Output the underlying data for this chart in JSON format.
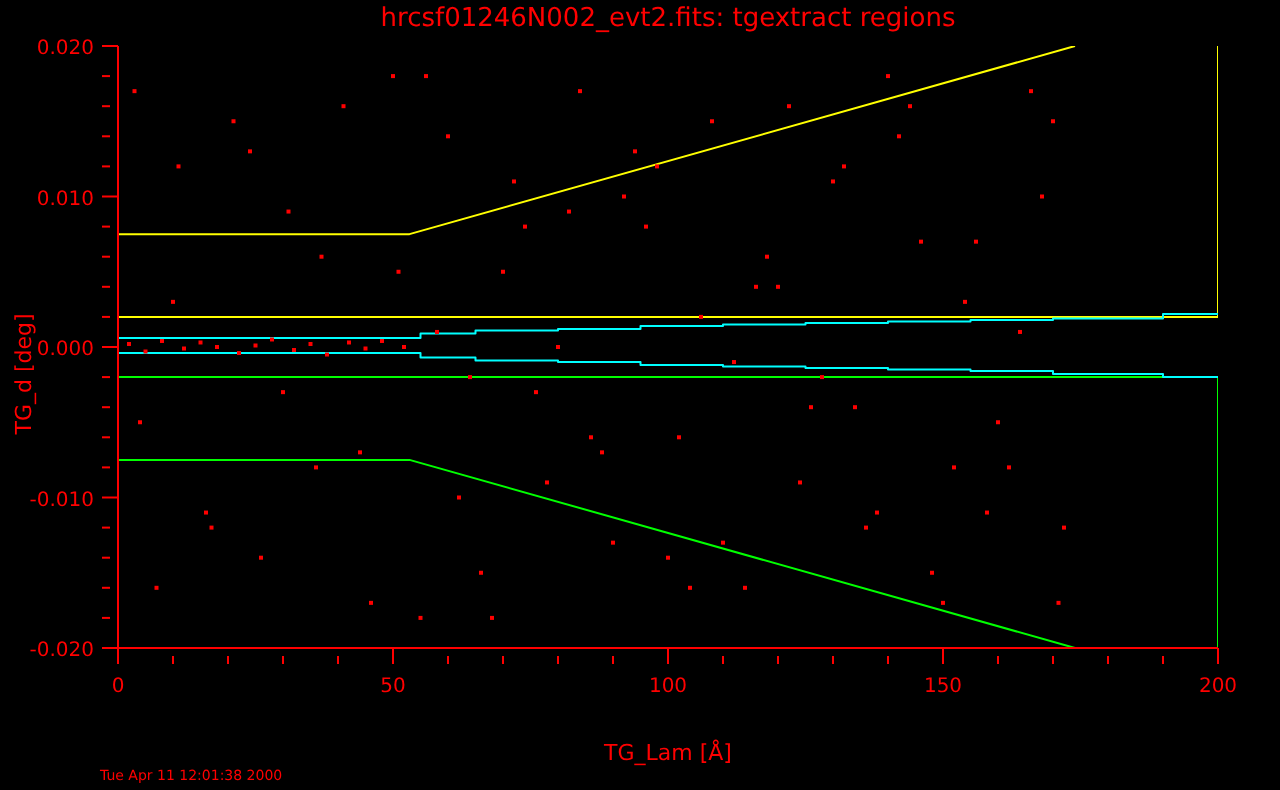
{
  "chart_data": {
    "type": "scatter",
    "title": "hrcsf01246N002_evt2.fits:  tgextract regions",
    "xlabel": "TG_Lam [Å]",
    "ylabel": "TG_d [deg]",
    "annotations": [
      "Tue Apr 11 12:01:38 2000"
    ],
    "xlim": [
      0,
      200
    ],
    "ylim": [
      -0.02,
      0.02
    ],
    "xticks": [
      0,
      {
        "value": 10,
        "label": null
      },
      {
        "value": 20,
        "label": null
      },
      {
        "value": 30,
        "label": null
      },
      {
        "value": 40,
        "label": null
      },
      50,
      {
        "value": 60,
        "label": null
      },
      {
        "value": 70,
        "label": null
      },
      {
        "value": 80,
        "label": null
      },
      {
        "value": 90,
        "label": null
      },
      100,
      {
        "value": 110,
        "label": null
      },
      {
        "value": 120,
        "label": null
      },
      {
        "value": 130,
        "label": null
      },
      {
        "value": 140,
        "label": null
      },
      150,
      {
        "value": 160,
        "label": null
      },
      {
        "value": 170,
        "label": null
      },
      {
        "value": 180,
        "label": null
      },
      {
        "value": 190,
        "label": null
      },
      200
    ],
    "yticks": [
      {
        "value": -0.02,
        "label": "-0.020"
      },
      {
        "value": -0.018,
        "label": null
      },
      {
        "value": -0.016,
        "label": null
      },
      {
        "value": -0.014,
        "label": null
      },
      {
        "value": -0.012,
        "label": null
      },
      {
        "value": -0.01,
        "label": "-0.010"
      },
      {
        "value": -0.008,
        "label": null
      },
      {
        "value": -0.006,
        "label": null
      },
      {
        "value": -0.004,
        "label": null
      },
      {
        "value": -0.002,
        "label": null
      },
      {
        "value": 0,
        "label": "0.000"
      },
      {
        "value": 0.002,
        "label": null
      },
      {
        "value": 0.004,
        "label": null
      },
      {
        "value": 0.006,
        "label": null
      },
      {
        "value": 0.008,
        "label": null
      },
      {
        "value": 0.01,
        "label": "0.010"
      },
      {
        "value": 0.012,
        "label": null
      },
      {
        "value": 0.014,
        "label": null
      },
      {
        "value": 0.016,
        "label": null
      },
      {
        "value": 0.018,
        "label": null
      },
      {
        "value": 0.02,
        "label": "0.020"
      }
    ],
    "series": [
      {
        "marker": "square",
        "color": "#ff0000",
        "x": [
          2,
          5,
          8,
          12,
          15,
          18,
          22,
          25,
          28,
          32,
          35,
          38,
          42,
          45,
          48,
          52,
          3,
          7,
          11,
          16,
          21,
          26,
          31,
          36,
          41,
          46,
          51,
          4,
          10,
          17,
          24,
          30,
          37,
          44,
          50,
          55,
          60,
          66,
          72,
          78,
          84,
          90,
          96,
          102,
          108,
          114,
          120,
          126,
          132,
          138,
          144,
          150,
          156,
          162,
          168,
          172,
          58,
          64,
          70,
          76,
          82,
          88,
          94,
          100,
          106,
          112,
          118,
          124,
          130,
          136,
          142,
          148,
          154,
          160,
          166,
          171,
          62,
          74,
          86,
          98,
          110,
          122,
          134,
          146,
          158,
          170,
          56,
          68,
          80,
          92,
          104,
          116,
          128,
          140,
          152,
          164
        ],
        "values": [
          0.0002,
          -0.0003,
          0.0004,
          -0.0001,
          0.0003,
          0.0,
          -0.0004,
          0.0001,
          0.0005,
          -0.0002,
          0.0002,
          -0.0005,
          0.0003,
          -0.0001,
          0.0004,
          0.0,
          0.017,
          -0.016,
          0.012,
          -0.011,
          0.015,
          -0.014,
          0.009,
          -0.008,
          0.016,
          -0.017,
          0.005,
          -0.005,
          0.003,
          -0.012,
          0.013,
          -0.003,
          0.006,
          -0.007,
          0.018,
          -0.018,
          0.014,
          -0.015,
          0.011,
          -0.009,
          0.017,
          -0.013,
          0.008,
          -0.006,
          0.015,
          -0.016,
          0.004,
          -0.004,
          0.012,
          -0.011,
          0.016,
          -0.017,
          0.007,
          -0.008,
          0.01,
          -0.012,
          0.001,
          -0.002,
          0.005,
          -0.003,
          0.009,
          -0.007,
          0.013,
          -0.014,
          0.002,
          -0.001,
          0.006,
          -0.009,
          0.011,
          -0.012,
          0.014,
          -0.015,
          0.003,
          -0.005,
          0.017,
          -0.017,
          -0.01,
          0.008,
          -0.006,
          0.012,
          -0.013,
          0.016,
          -0.004,
          0.007,
          -0.011,
          0.015,
          0.018,
          -0.018,
          0.0,
          0.01,
          -0.016,
          0.004,
          -0.002,
          0.018,
          -0.008,
          0.001
        ]
      },
      {
        "type": "line",
        "color": "#ffff00",
        "x": [
          0,
          53,
          174
        ],
        "values": [
          0.0075,
          0.0075,
          0.02
        ]
      },
      {
        "type": "line",
        "color": "#ffff00",
        "x": [
          0,
          200,
          200
        ],
        "values": [
          0.002,
          0.002,
          0.02
        ]
      },
      {
        "type": "line",
        "color": "#00ff00",
        "x": [
          0,
          53,
          174
        ],
        "values": [
          -0.0075,
          -0.0075,
          -0.02
        ]
      },
      {
        "type": "line",
        "color": "#00ff00",
        "x": [
          0,
          200,
          200
        ],
        "values": [
          -0.002,
          -0.002,
          -0.02
        ]
      },
      {
        "type": "step",
        "color": "#00ffff",
        "x": [
          0,
          55,
          65,
          80,
          95,
          110,
          125,
          140,
          155,
          170,
          190,
          200
        ],
        "values": [
          0.0006,
          0.0009,
          0.0011,
          0.0012,
          0.0014,
          0.0015,
          0.0016,
          0.0017,
          0.0018,
          0.0019,
          0.0022,
          0.0022
        ]
      },
      {
        "type": "step",
        "color": "#00ffff",
        "x": [
          0,
          55,
          65,
          80,
          95,
          110,
          125,
          140,
          155,
          170,
          190,
          200
        ],
        "values": [
          -0.0004,
          -0.0007,
          -0.0009,
          -0.001,
          -0.0012,
          -0.0013,
          -0.0014,
          -0.0015,
          -0.0016,
          -0.0018,
          -0.002,
          -0.002
        ]
      }
    ]
  }
}
